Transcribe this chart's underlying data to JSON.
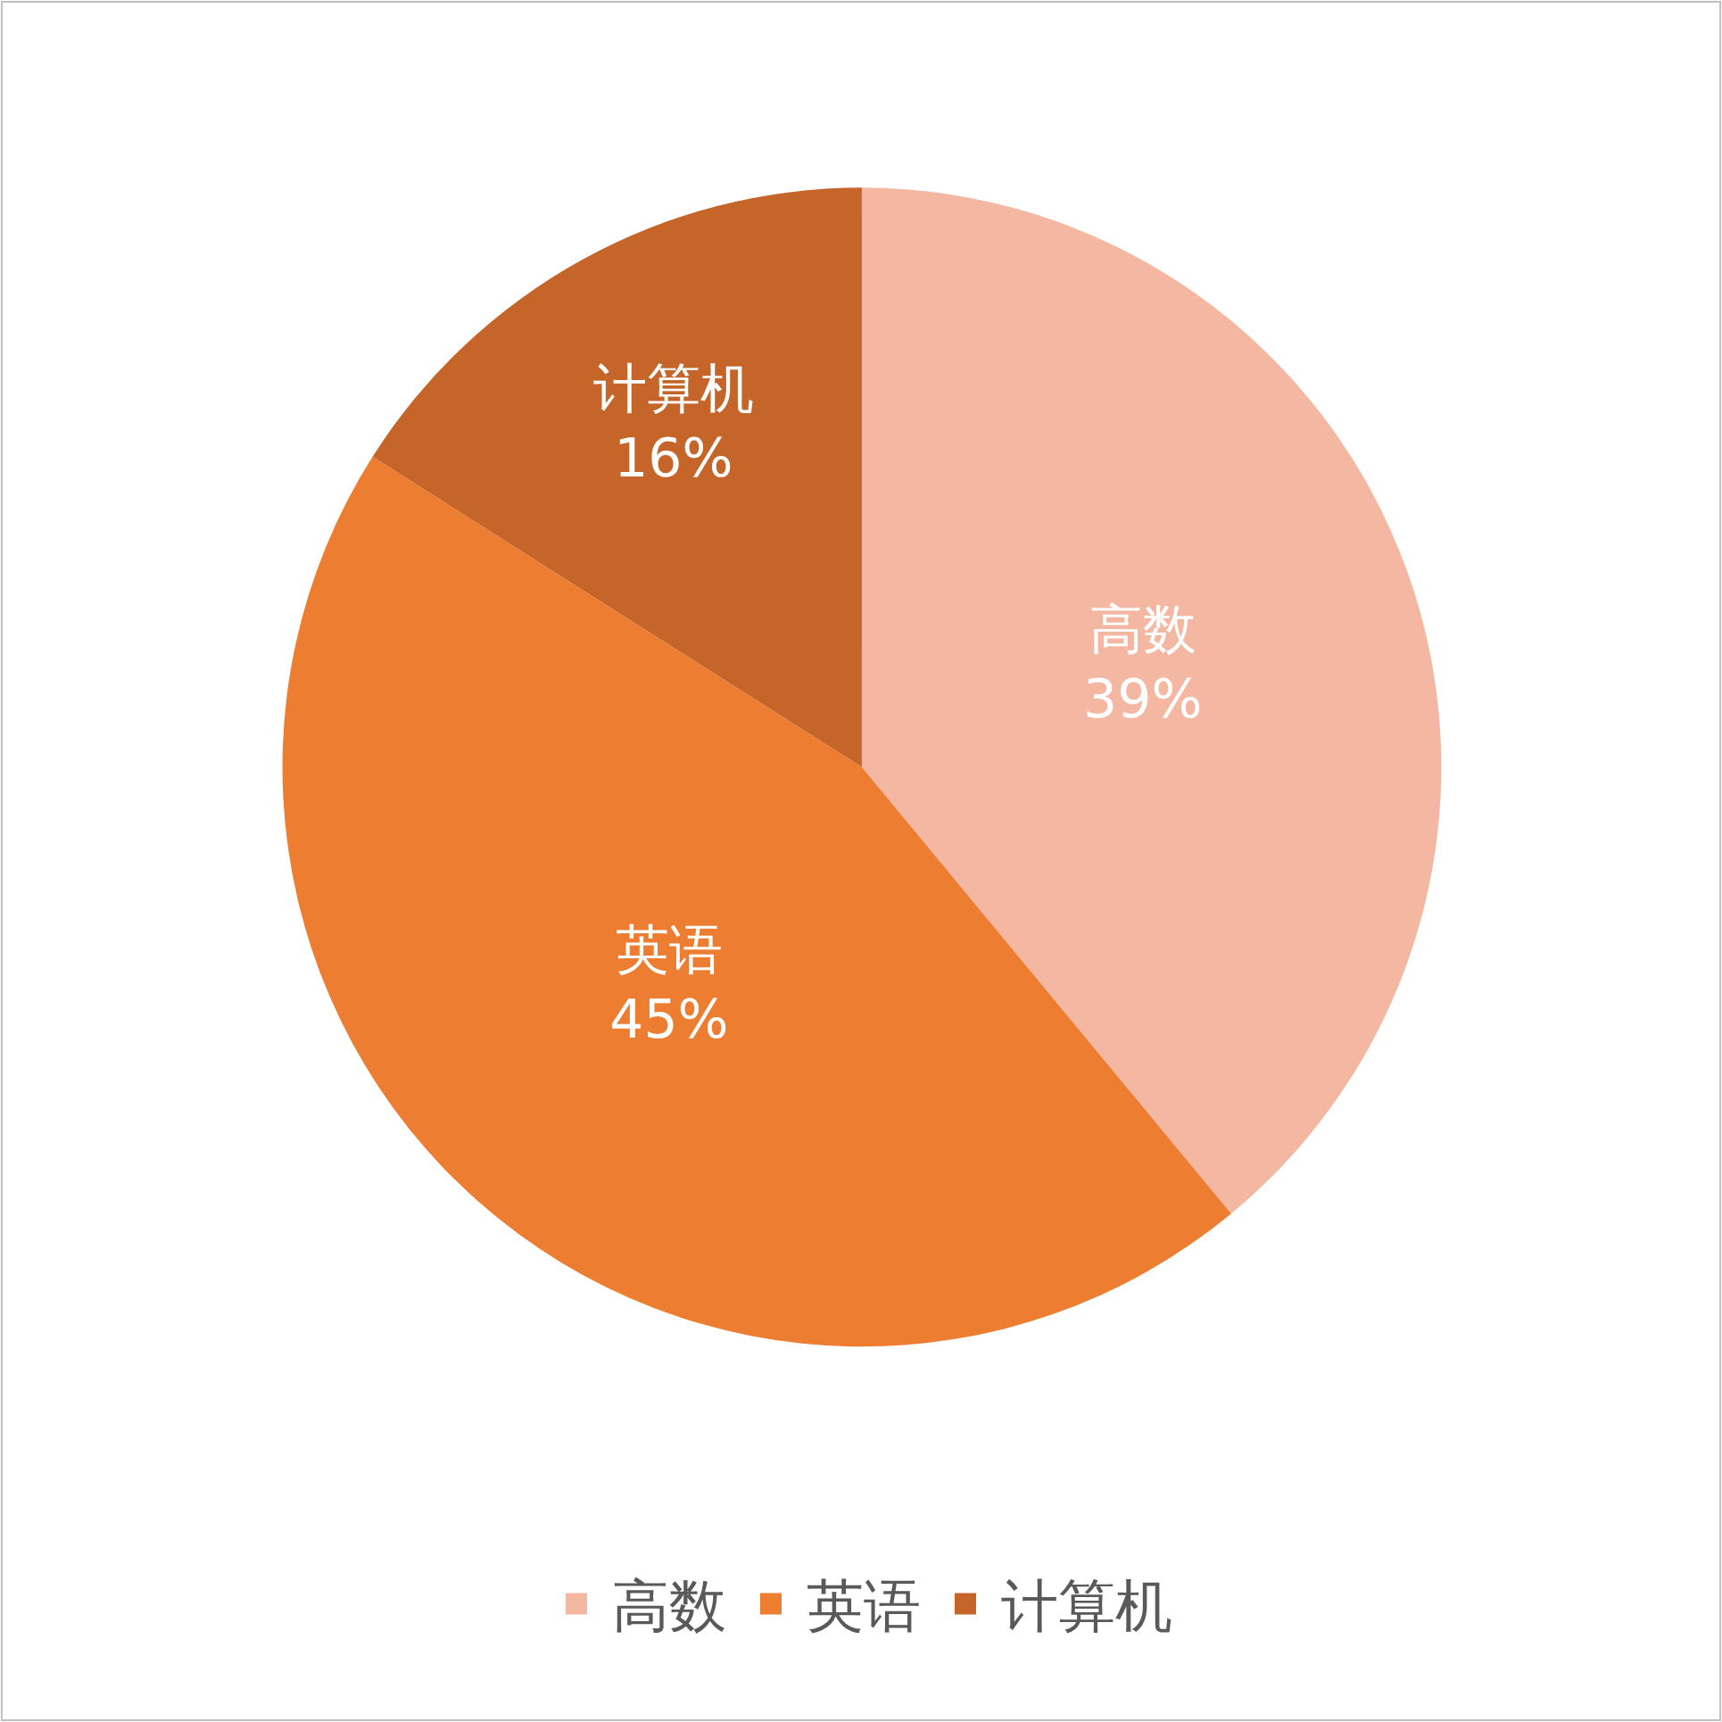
{
  "chart_data": {
    "type": "pie",
    "categories": [
      "高数",
      "英语",
      "计算机"
    ],
    "values": [
      39,
      45,
      16
    ],
    "value_labels": [
      "39%",
      "45%",
      "16%"
    ],
    "colors": [
      "#f4b8a2",
      "#ed7d31",
      "#c5652a"
    ],
    "legend": "bottom"
  }
}
